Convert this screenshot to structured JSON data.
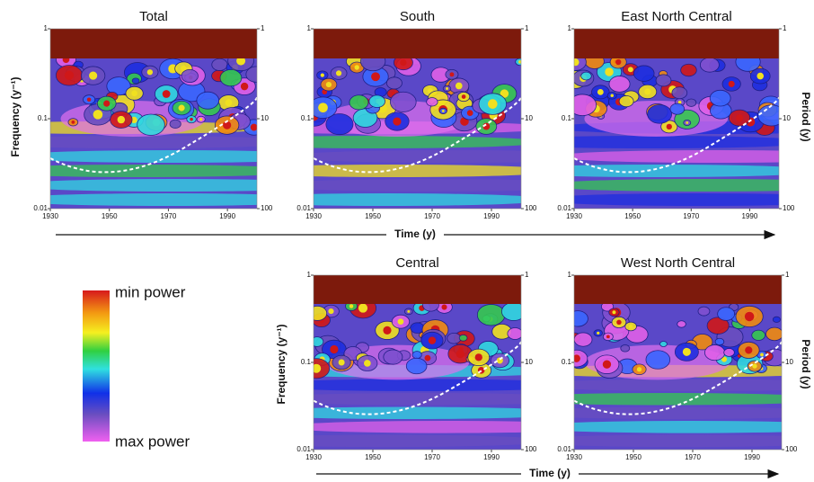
{
  "chart_data": [
    {
      "type": "heatmap",
      "title": "Total",
      "xticks": [
        1930,
        1950,
        1970,
        1990
      ],
      "xlim": [
        1930,
        2000
      ],
      "ylim": [
        0.01,
        1
      ],
      "log_y": true,
      "yticks": [
        1,
        0.1,
        0.01
      ],
      "y2lim": [
        100,
        1
      ],
      "y2ticks": [
        1,
        10,
        100
      ]
    },
    {
      "type": "heatmap",
      "title": "South",
      "xticks": [
        1930,
        1950,
        1970,
        1990
      ],
      "xlim": [
        1930,
        2000
      ],
      "ylim": [
        0.01,
        1
      ],
      "log_y": true,
      "yticks": [
        1,
        0.1,
        0.01
      ],
      "y2lim": [
        100,
        1
      ],
      "y2ticks": [
        1,
        10,
        100
      ]
    },
    {
      "type": "heatmap",
      "title": "East North Central",
      "xticks": [
        1930,
        1950,
        1970,
        1990
      ],
      "xlim": [
        1930,
        2000
      ],
      "ylim": [
        0.01,
        1
      ],
      "log_y": true,
      "yticks": [
        1,
        0.1,
        0.01
      ],
      "y2lim": [
        100,
        1
      ],
      "y2ticks": [
        1,
        10,
        100
      ]
    },
    {
      "type": "heatmap",
      "title": "Central",
      "xticks": [
        1930,
        1950,
        1970,
        1990
      ],
      "xlim": [
        1930,
        2000
      ],
      "ylim": [
        0.01,
        1
      ],
      "log_y": true,
      "yticks": [
        1,
        0.1,
        0.01
      ],
      "y2lim": [
        100,
        1
      ],
      "y2ticks": [
        1,
        10,
        100
      ]
    },
    {
      "type": "heatmap",
      "title": "West North Central",
      "xticks": [
        1930,
        1950,
        1970,
        1990
      ],
      "xlim": [
        1930,
        2000
      ],
      "ylim": [
        0.01,
        1
      ],
      "log_y": true,
      "yticks": [
        1,
        0.1,
        0.01
      ],
      "y2lim": [
        100,
        1
      ],
      "y2ticks": [
        1,
        10,
        100
      ]
    }
  ],
  "labels": {
    "frequency_top": "Frequency (y⁻¹)",
    "frequency_bottom": "Frequency (y⁻¹)",
    "period_top": "Period (y)",
    "period_bottom": "Period (y)",
    "time_top": "Time (y)",
    "time_bottom": "Time (y)"
  },
  "legend": {
    "min": "min power",
    "max": "max power"
  }
}
